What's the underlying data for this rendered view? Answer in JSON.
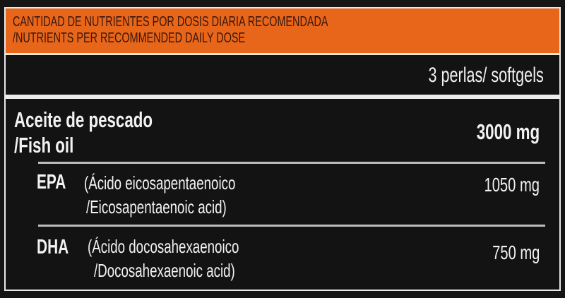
{
  "header": {
    "line1": "CANTIDAD DE NUTRIENTES POR DOSIS DIARIA RECOMENDADA",
    "line2": "/NUTRIENTS PER RECOMMENDED DAILY DOSE"
  },
  "serving": "3 perlas/ softgels",
  "rows": [
    {
      "name_line1": "Aceite de pescado",
      "name_line2": "/Fish oil",
      "amount": "3000 mg"
    },
    {
      "abbr": "EPA",
      "name_line1": "(Ácido eicosapentaenoico",
      "name_line2": "/Eicosapentaenoic acid)",
      "amount": "1050 mg"
    },
    {
      "abbr": "DHA",
      "name_line1": "(Ácido docosahexaenoico",
      "name_line2": "/Docosahexaenoic acid)",
      "amount": "750 mg"
    }
  ],
  "colors": {
    "header_bg": "#e8661a",
    "background": "#131313",
    "text": "#f2f2f2"
  }
}
